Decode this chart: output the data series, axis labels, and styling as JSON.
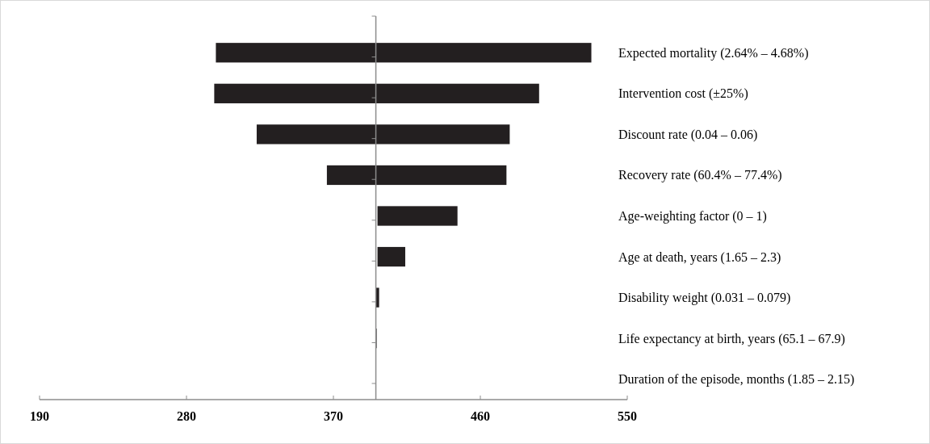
{
  "chart_data": {
    "type": "bar",
    "orientation": "horizontal",
    "categories": [
      "Expected mortality (2.64% – 4.68%)",
      "Intervention cost (±25%)",
      "Discount rate (0.04 – 0.06)",
      "Recovery rate (60.4% – 77.4%)",
      "Age-weighting factor (0 – 1)",
      "Age at death, years (1.65 – 2.3)",
      "Disability weight (0.031 – 0.079)",
      "Life expectancy at birth, years (65.1 – 67.9)",
      "Duration of the episode, months (1.85 – 2.15)"
    ],
    "base": [
      298,
      297,
      323,
      366,
      397,
      397,
      396,
      396,
      null
    ],
    "values": [
      230,
      199,
      155,
      110,
      49,
      17,
      2,
      0.5,
      null
    ],
    "color": "#231f20",
    "xlim": [
      190,
      550
    ],
    "xticks": [
      190,
      280,
      370,
      460,
      550
    ],
    "ref_lines": [
      {
        "axis": "x",
        "value": 396,
        "color": "#8c8c8c"
      }
    ],
    "grid": false
  }
}
